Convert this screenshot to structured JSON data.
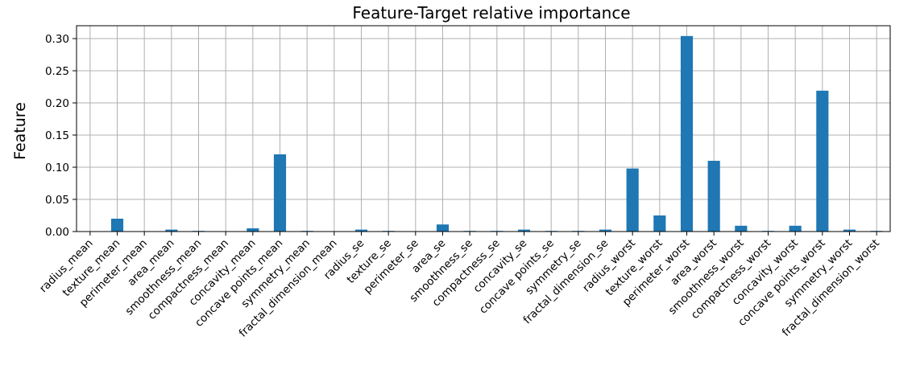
{
  "chart_data": {
    "type": "bar",
    "title": "Feature-Target relative importance",
    "xlabel": "",
    "ylabel": "Feature",
    "ylim": [
      0,
      0.32
    ],
    "yticks": [
      "0.00",
      "0.05",
      "0.10",
      "0.15",
      "0.20",
      "0.25",
      "0.30"
    ],
    "grid": true,
    "bar_color": "#1f77b4",
    "categories": [
      "radius_mean",
      "texture_mean",
      "perimeter_mean",
      "area_mean",
      "smoothness_mean",
      "compactness_mean",
      "concavity_mean",
      "concave points_mean",
      "symmetry_mean",
      "fractal_dimension_mean",
      "radius_se",
      "texture_se",
      "perimeter_se",
      "area_se",
      "smoothness_se",
      "compactness_se",
      "concavity_se",
      "concave points_se",
      "symmetry_se",
      "fractal_dimension_se",
      "radius_worst",
      "texture_worst",
      "perimeter_worst",
      "area_worst",
      "smoothness_worst",
      "compactness_worst",
      "concavity_worst",
      "concave points_worst",
      "symmetry_worst",
      "fractal_dimension_worst"
    ],
    "values": [
      0.0,
      0.02,
      0.0,
      0.003,
      0.001,
      0.0,
      0.005,
      0.12,
      0.001,
      0.0,
      0.003,
      0.001,
      0.0,
      0.011,
      0.001,
      0.001,
      0.003,
      0.001,
      0.001,
      0.003,
      0.098,
      0.025,
      0.304,
      0.11,
      0.009,
      0.001,
      0.009,
      0.219,
      0.003,
      0.001
    ]
  }
}
